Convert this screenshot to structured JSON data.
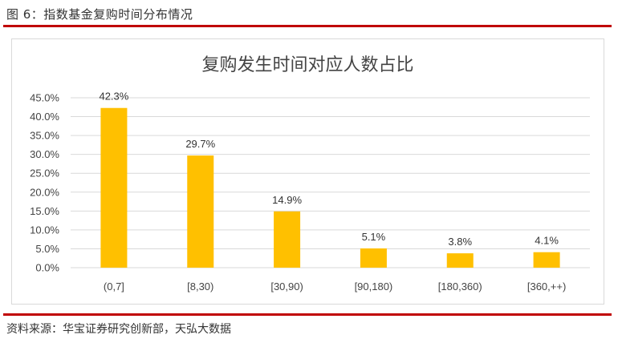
{
  "figure_caption": "图 6：指数基金复购时间分布情况",
  "source_note": "资料来源：华宝证券研究创新部，天弘大数据",
  "colors": {
    "bar": "#ffc000",
    "rule": "#c00000",
    "grid": "#d9d9d9"
  },
  "chart_data": {
    "type": "bar",
    "title": "复购发生时间对应人数占比",
    "categories": [
      "(0,7]",
      "[8,30)",
      "[30,90)",
      "[90,180)",
      "[180,360)",
      "[360,++)"
    ],
    "values": [
      42.3,
      29.7,
      14.9,
      5.1,
      3.8,
      4.1
    ],
    "data_labels": [
      "42.3%",
      "29.7%",
      "14.9%",
      "5.1%",
      "3.8%",
      "4.1%"
    ],
    "yticks": [
      "0.0%",
      "5.0%",
      "10.0%",
      "15.0%",
      "20.0%",
      "25.0%",
      "30.0%",
      "35.0%",
      "40.0%",
      "45.0%"
    ],
    "ylim": [
      0,
      45
    ],
    "ystep": 5,
    "xlabel": "",
    "ylabel": "",
    "grid": true,
    "legend": "none"
  }
}
